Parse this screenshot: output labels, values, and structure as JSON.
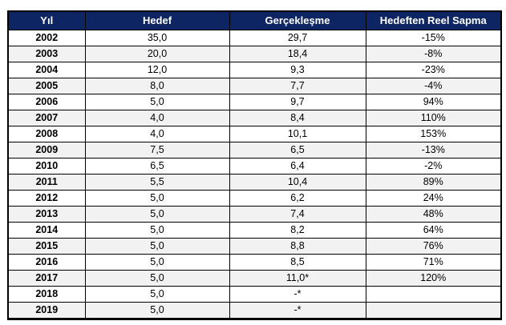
{
  "colors": {
    "header_bg": "#0d2563",
    "header_fg": "#ffffff",
    "stripe": "#f2f2f2",
    "border": "#000000"
  },
  "table": {
    "headers": [
      "Yıl",
      "Hedef",
      "Gerçekleşme",
      "Hedeften Reel Sapma"
    ],
    "rows": [
      {
        "year": "2002",
        "hedef": "35,0",
        "gerceklesme": "29,7",
        "sapma": "-15%"
      },
      {
        "year": "2003",
        "hedef": "20,0",
        "gerceklesme": "18,4",
        "sapma": "-8%"
      },
      {
        "year": "2004",
        "hedef": "12,0",
        "gerceklesme": "9,3",
        "sapma": "-23%"
      },
      {
        "year": "2005",
        "hedef": "8,0",
        "gerceklesme": "7,7",
        "sapma": "-4%"
      },
      {
        "year": "2006",
        "hedef": "5,0",
        "gerceklesme": "9,7",
        "sapma": "94%"
      },
      {
        "year": "2007",
        "hedef": "4,0",
        "gerceklesme": "8,4",
        "sapma": "110%"
      },
      {
        "year": "2008",
        "hedef": "4,0",
        "gerceklesme": "10,1",
        "sapma": "153%"
      },
      {
        "year": "2009",
        "hedef": "7,5",
        "gerceklesme": "6,5",
        "sapma": "-13%"
      },
      {
        "year": "2010",
        "hedef": "6,5",
        "gerceklesme": "6,4",
        "sapma": "-2%"
      },
      {
        "year": "2011",
        "hedef": "5,5",
        "gerceklesme": "10,4",
        "sapma": "89%"
      },
      {
        "year": "2012",
        "hedef": "5,0",
        "gerceklesme": "6,2",
        "sapma": "24%"
      },
      {
        "year": "2013",
        "hedef": "5,0",
        "gerceklesme": "7,4",
        "sapma": "48%"
      },
      {
        "year": "2014",
        "hedef": "5,0",
        "gerceklesme": "8,2",
        "sapma": "64%"
      },
      {
        "year": "2015",
        "hedef": "5,0",
        "gerceklesme": "8,8",
        "sapma": "76%"
      },
      {
        "year": "2016",
        "hedef": "5,0",
        "gerceklesme": "8,5",
        "sapma": "71%"
      },
      {
        "year": "2017",
        "hedef": "5,0",
        "gerceklesme": "11,0*",
        "sapma": "120%"
      },
      {
        "year": "2018",
        "hedef": "5,0",
        "gerceklesme": "-*",
        "sapma": ""
      },
      {
        "year": "2019",
        "hedef": "5,0",
        "gerceklesme": "-*",
        "sapma": ""
      }
    ]
  }
}
